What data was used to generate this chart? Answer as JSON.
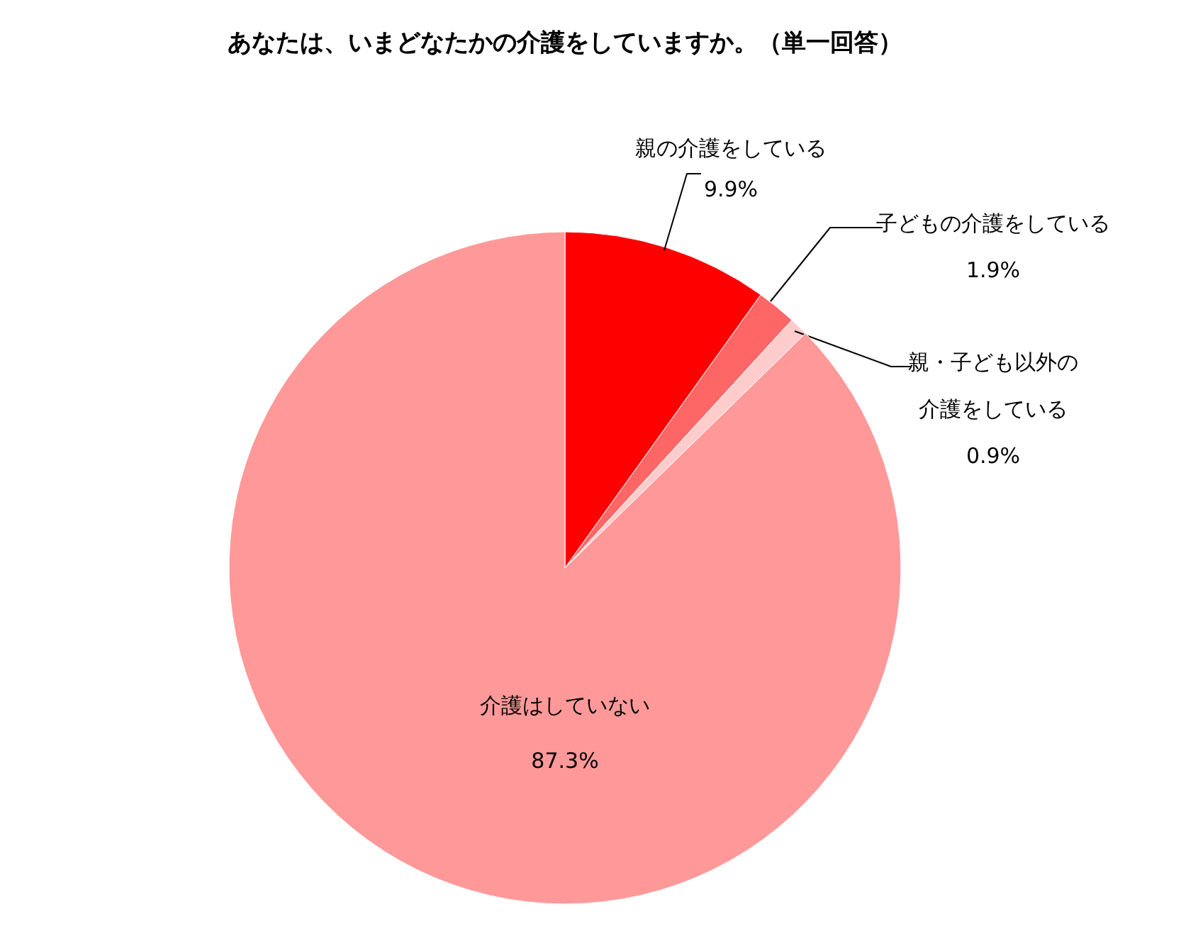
{
  "chart_data": {
    "type": "pie",
    "title": "あなたは、いまどなたかの介護をしていますか。（単一回答）",
    "categories": [
      "親の介護をしている",
      "子どもの介護をしている",
      "親・子ども以外の介護をしている",
      "介護はしていない"
    ],
    "values": [
      9.9,
      1.9,
      0.9,
      87.3
    ],
    "value_labels": [
      "9.9%",
      "1.9%",
      "0.9%",
      "87.3%"
    ],
    "colors": [
      "#ff0000",
      "#ff6666",
      "#ffcccc",
      "#ff9999"
    ]
  }
}
